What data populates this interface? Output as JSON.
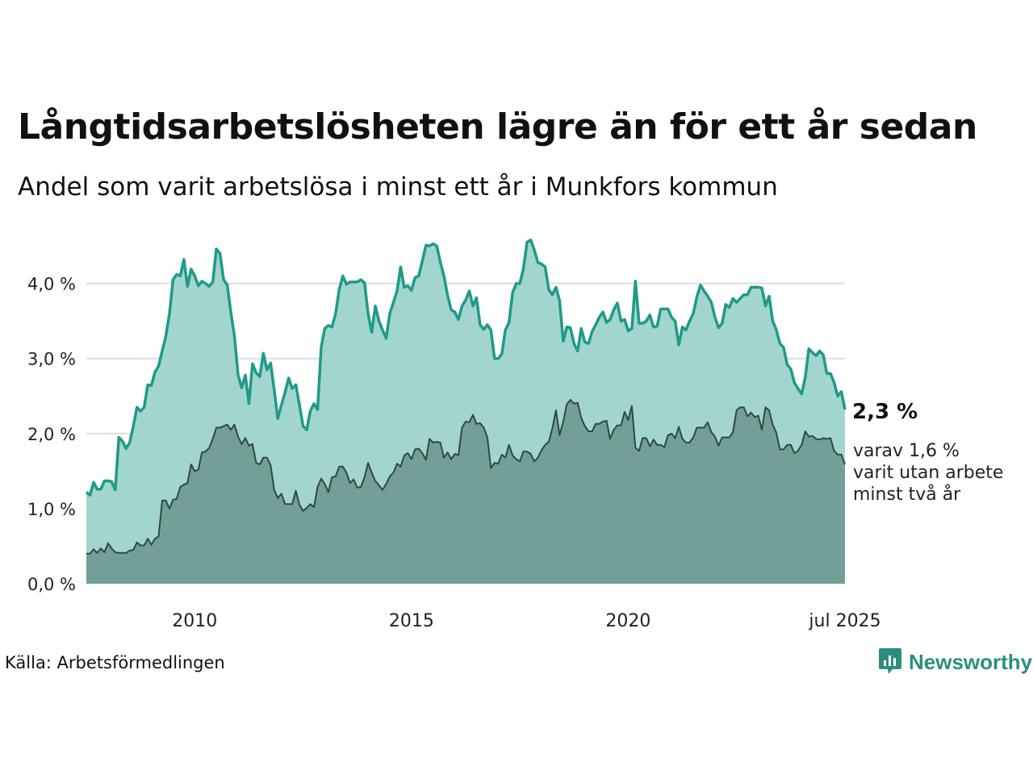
{
  "title": "Långtidsarbetslösheten lägre än för ett år sedan",
  "subtitle": "Andel som varit arbetslösa i minst ett år i Munkfors kommun",
  "source": "Källa: Arbetsförmedlingen",
  "logo_text": "Newsworthy",
  "colors": {
    "series1_line": "#1f9a88",
    "series1_fill": "#a3d5cf",
    "series2_line": "#2d4a45",
    "series2_fill": "#729f97",
    "grid": "#dddddd"
  },
  "chart_data": {
    "type": "area",
    "x_start": "2008-01",
    "x_end": "2025-07",
    "frequency": "monthly",
    "ylim": [
      0,
      4.7
    ],
    "yticks": [
      0,
      1,
      2,
      3,
      4
    ],
    "ytick_labels": [
      "0,0 %",
      "1,0 %",
      "2,0 %",
      "3,0 %",
      "4,0 %"
    ],
    "xtick_years": [
      2010,
      2015,
      2020
    ],
    "xtick_labels": [
      "2010",
      "2015",
      "2020",
      "jul 2025"
    ],
    "grid": true,
    "end_label": "2,3 %",
    "end_sublabel": [
      "varav 1,6 %",
      "varit utan arbete",
      "minst två år"
    ],
    "series": [
      {
        "values": [
          1.22,
          1.18,
          1.35,
          1.26,
          1.26,
          1.37,
          1.37,
          1.36,
          1.25,
          1.95,
          1.9,
          1.8,
          1.88,
          2.1,
          2.35,
          2.3,
          2.35,
          2.65,
          2.64,
          2.82,
          2.9,
          3.1,
          3.3,
          3.6,
          4.05,
          4.12,
          4.1,
          4.32,
          3.96,
          4.19,
          4.1,
          3.97,
          4.03,
          4.0,
          3.96,
          4.02,
          4.46,
          4.4,
          4.05,
          3.98,
          3.62,
          3.3,
          2.78,
          2.61,
          2.78,
          2.4,
          2.93,
          2.81,
          2.76,
          3.07,
          2.85,
          2.94,
          2.58,
          2.2,
          2.38,
          2.55,
          2.74,
          2.6,
          2.65,
          2.38,
          2.1,
          2.05,
          2.3,
          2.4,
          2.32,
          3.15,
          3.4,
          3.44,
          3.42,
          3.6,
          3.92,
          4.1,
          3.99,
          4.02,
          4.02,
          4.02,
          4.05,
          4.01,
          3.6,
          3.35,
          3.7,
          3.5,
          3.38,
          3.27,
          3.6,
          3.75,
          3.9,
          4.22,
          3.95,
          3.97,
          3.91,
          4.08,
          4.1,
          4.3,
          4.51,
          4.5,
          4.53,
          4.5,
          4.28,
          4.1,
          3.84,
          3.65,
          3.62,
          3.52,
          3.7,
          3.78,
          3.9,
          3.7,
          3.81,
          3.45,
          3.39,
          3.45,
          3.38,
          3.0,
          3.0,
          3.06,
          3.38,
          3.48,
          3.88,
          4.0,
          4.0,
          4.2,
          4.55,
          4.58,
          4.45,
          4.28,
          4.26,
          4.22,
          3.92,
          3.85,
          3.95,
          3.77,
          3.23,
          3.42,
          3.41,
          3.2,
          3.1,
          3.4,
          3.22,
          3.2,
          3.36,
          3.45,
          3.55,
          3.62,
          3.48,
          3.52,
          3.65,
          3.74,
          3.5,
          3.52,
          3.37,
          3.4,
          4.03,
          3.47,
          3.47,
          3.5,
          3.58,
          3.42,
          3.43,
          3.66,
          3.66,
          3.66,
          3.55,
          3.5,
          3.18,
          3.42,
          3.38,
          3.5,
          3.6,
          3.82,
          3.98,
          3.9,
          3.83,
          3.75,
          3.55,
          3.41,
          3.47,
          3.72,
          3.68,
          3.8,
          3.75,
          3.8,
          3.85,
          3.85,
          3.95,
          3.95,
          3.95,
          3.94,
          3.7,
          3.83,
          3.5,
          3.38,
          3.2,
          3.15,
          2.92,
          2.86,
          2.68,
          2.6,
          2.53,
          2.75,
          3.13,
          3.08,
          3.04,
          3.1,
          3.05,
          2.8,
          2.8,
          2.68,
          2.5,
          2.56,
          2.32
        ]
      },
      {
        "values": [
          0.4,
          0.4,
          0.46,
          0.41,
          0.47,
          0.42,
          0.54,
          0.47,
          0.42,
          0.41,
          0.41,
          0.41,
          0.44,
          0.45,
          0.55,
          0.51,
          0.51,
          0.6,
          0.52,
          0.6,
          0.63,
          1.11,
          1.11,
          1.0,
          1.12,
          1.13,
          1.29,
          1.32,
          1.34,
          1.59,
          1.5,
          1.52,
          1.75,
          1.76,
          1.81,
          1.93,
          2.08,
          2.08,
          2.1,
          2.12,
          2.05,
          2.12,
          1.96,
          1.86,
          1.94,
          1.84,
          1.86,
          1.61,
          1.59,
          1.68,
          1.68,
          1.58,
          1.25,
          1.14,
          1.2,
          1.06,
          1.06,
          1.06,
          1.24,
          1.05,
          0.97,
          1.01,
          1.06,
          1.02,
          1.29,
          1.4,
          1.33,
          1.22,
          1.42,
          1.43,
          1.56,
          1.56,
          1.48,
          1.34,
          1.39,
          1.28,
          1.29,
          1.42,
          1.61,
          1.48,
          1.37,
          1.31,
          1.25,
          1.33,
          1.43,
          1.48,
          1.6,
          1.56,
          1.71,
          1.74,
          1.66,
          1.79,
          1.8,
          1.74,
          1.65,
          1.93,
          1.88,
          1.89,
          1.88,
          1.68,
          1.75,
          1.66,
          1.73,
          1.71,
          2.08,
          2.16,
          2.15,
          2.25,
          2.13,
          2.14,
          2.08,
          1.95,
          1.54,
          1.61,
          1.6,
          1.72,
          1.68,
          1.85,
          1.71,
          1.66,
          1.63,
          1.76,
          1.76,
          1.73,
          1.63,
          1.68,
          1.78,
          1.85,
          1.89,
          2.07,
          2.31,
          1.98,
          2.16,
          2.39,
          2.45,
          2.4,
          2.41,
          2.21,
          2.1,
          2.03,
          2.03,
          2.13,
          2.13,
          2.16,
          2.17,
          1.93,
          2.05,
          2.11,
          2.11,
          2.29,
          2.18,
          2.37,
          1.81,
          1.77,
          1.94,
          1.94,
          1.83,
          1.92,
          1.85,
          1.85,
          1.82,
          1.98,
          2.0,
          1.94,
          2.09,
          1.93,
          1.88,
          1.88,
          1.95,
          2.08,
          2.08,
          2.08,
          2.15,
          2.02,
          1.96,
          1.84,
          1.95,
          1.95,
          1.95,
          2.02,
          2.31,
          2.35,
          2.35,
          2.23,
          2.28,
          2.22,
          2.24,
          2.05,
          2.35,
          2.31,
          2.12,
          2.01,
          1.79,
          1.79,
          1.85,
          1.85,
          1.74,
          1.77,
          1.85,
          2.03,
          1.96,
          1.97,
          1.93,
          1.92,
          1.94,
          1.93,
          1.94,
          1.77,
          1.72,
          1.72,
          1.59
        ]
      }
    ]
  }
}
